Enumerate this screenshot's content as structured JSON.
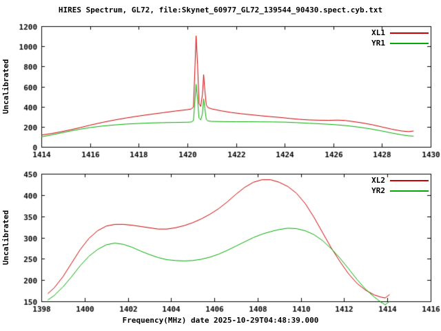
{
  "title": "HIRES Spectrum, GL72, file:Skynet_60977_GL72_139544_90430.spect.cyb.txt",
  "xlabel": "Frequency(MHz) date 2025-10-29T04:48:39.000",
  "colors": {
    "axis": "#000000",
    "background": "#ffffff",
    "text": "#000000"
  },
  "chart_data": [
    {
      "type": "line",
      "ylabel": "Uncalibrated",
      "xlim": [
        1414,
        1430
      ],
      "ylim": [
        0,
        1200
      ],
      "xticks": [
        1414,
        1416,
        1418,
        1420,
        1422,
        1424,
        1426,
        1428,
        1430
      ],
      "yticks": [
        0,
        200,
        400,
        600,
        800,
        1000,
        1200
      ],
      "grid": false,
      "legend_position": "top-right",
      "series": [
        {
          "name": "XL1",
          "color": "#cc0000",
          "points": [
            [
              1414,
              118
            ],
            [
              1414.4,
              132
            ],
            [
              1414.8,
              150
            ],
            [
              1415.2,
              170
            ],
            [
              1415.6,
              192
            ],
            [
              1416,
              216
            ],
            [
              1416.5,
              243
            ],
            [
              1417,
              267
            ],
            [
              1417.5,
              288
            ],
            [
              1418,
              307
            ],
            [
              1418.5,
              324
            ],
            [
              1419,
              340
            ],
            [
              1419.5,
              356
            ],
            [
              1420,
              370
            ],
            [
              1420.15,
              376
            ],
            [
              1420.25,
              395
            ],
            [
              1420.3,
              700
            ],
            [
              1420.36,
              1105
            ],
            [
              1420.42,
              820
            ],
            [
              1420.48,
              430
            ],
            [
              1420.55,
              402
            ],
            [
              1420.62,
              520
            ],
            [
              1420.67,
              718
            ],
            [
              1420.72,
              560
            ],
            [
              1420.78,
              415
            ],
            [
              1420.85,
              390
            ],
            [
              1421,
              378
            ],
            [
              1421.4,
              358
            ],
            [
              1421.8,
              342
            ],
            [
              1422.2,
              330
            ],
            [
              1422.6,
              320
            ],
            [
              1423,
              310
            ],
            [
              1423.4,
              301
            ],
            [
              1423.8,
              293
            ],
            [
              1424.2,
              283
            ],
            [
              1424.6,
              274
            ],
            [
              1425,
              268
            ],
            [
              1425.4,
              265
            ],
            [
              1425.8,
              264
            ],
            [
              1426.2,
              266
            ],
            [
              1426.5,
              262
            ],
            [
              1426.8,
              252
            ],
            [
              1427.2,
              238
            ],
            [
              1427.6,
              220
            ],
            [
              1428,
              198
            ],
            [
              1428.4,
              176
            ],
            [
              1428.8,
              158
            ],
            [
              1429.1,
              152
            ],
            [
              1429.3,
              158
            ]
          ]
        },
        {
          "name": "YR1",
          "color": "#00aa00",
          "points": [
            [
              1414,
              100
            ],
            [
              1414.4,
              118
            ],
            [
              1414.8,
              138
            ],
            [
              1415.2,
              158
            ],
            [
              1415.6,
              176
            ],
            [
              1416,
              192
            ],
            [
              1416.5,
              207
            ],
            [
              1417,
              218
            ],
            [
              1417.5,
              227
            ],
            [
              1418,
              233
            ],
            [
              1418.5,
              238
            ],
            [
              1419,
              241
            ],
            [
              1419.5,
              243
            ],
            [
              1420,
              245
            ],
            [
              1420.15,
              247
            ],
            [
              1420.25,
              260
            ],
            [
              1420.3,
              420
            ],
            [
              1420.36,
              622
            ],
            [
              1420.42,
              470
            ],
            [
              1420.48,
              285
            ],
            [
              1420.55,
              268
            ],
            [
              1420.62,
              330
            ],
            [
              1420.67,
              478
            ],
            [
              1420.72,
              380
            ],
            [
              1420.78,
              272
            ],
            [
              1420.85,
              258
            ],
            [
              1421,
              253
            ],
            [
              1421.5,
              251
            ],
            [
              1422,
              250
            ],
            [
              1422.5,
              250
            ],
            [
              1423,
              249
            ],
            [
              1423.5,
              248
            ],
            [
              1424,
              246
            ],
            [
              1424.5,
              241
            ],
            [
              1425,
              235
            ],
            [
              1425.5,
              229
            ],
            [
              1426,
              222
            ],
            [
              1426.5,
              212
            ],
            [
              1427,
              198
            ],
            [
              1427.5,
              180
            ],
            [
              1428,
              158
            ],
            [
              1428.4,
              138
            ],
            [
              1428.8,
              120
            ],
            [
              1429.1,
              110
            ],
            [
              1429.3,
              107
            ]
          ]
        }
      ]
    },
    {
      "type": "line",
      "ylabel": "Uncalibrated",
      "xlim": [
        1398,
        1416
      ],
      "ylim": [
        150,
        450
      ],
      "xticks": [
        1398,
        1400,
        1402,
        1404,
        1406,
        1408,
        1410,
        1412,
        1414,
        1416
      ],
      "yticks": [
        150,
        200,
        250,
        300,
        350,
        400,
        450
      ],
      "grid": false,
      "legend_position": "top-right",
      "series": [
        {
          "name": "XL2",
          "color": "#cc0000",
          "points": [
            [
              1398.3,
              168
            ],
            [
              1398.6,
              182
            ],
            [
              1399,
              208
            ],
            [
              1399.4,
              240
            ],
            [
              1399.8,
              272
            ],
            [
              1400.2,
              298
            ],
            [
              1400.6,
              316
            ],
            [
              1401,
              327
            ],
            [
              1401.4,
              331
            ],
            [
              1401.8,
              331
            ],
            [
              1402.2,
              329
            ],
            [
              1402.6,
              326
            ],
            [
              1403,
              323
            ],
            [
              1403.4,
              320
            ],
            [
              1403.8,
              320
            ],
            [
              1404.2,
              323
            ],
            [
              1404.6,
              328
            ],
            [
              1405,
              335
            ],
            [
              1405.4,
              344
            ],
            [
              1405.8,
              355
            ],
            [
              1406.2,
              368
            ],
            [
              1406.6,
              384
            ],
            [
              1407,
              402
            ],
            [
              1407.4,
              418
            ],
            [
              1407.8,
              430
            ],
            [
              1408.2,
              436
            ],
            [
              1408.6,
              436
            ],
            [
              1409,
              430
            ],
            [
              1409.4,
              420
            ],
            [
              1409.8,
              404
            ],
            [
              1410.2,
              380
            ],
            [
              1410.6,
              348
            ],
            [
              1411,
              312
            ],
            [
              1411.4,
              276
            ],
            [
              1411.8,
              244
            ],
            [
              1412.2,
              215
            ],
            [
              1412.6,
              192
            ],
            [
              1413,
              176
            ],
            [
              1413.4,
              165
            ],
            [
              1413.7,
              160
            ],
            [
              1413.9,
              158
            ],
            [
              1414.1,
              166
            ]
          ]
        },
        {
          "name": "YR2",
          "color": "#00aa00",
          "points": [
            [
              1398.3,
              153
            ],
            [
              1398.6,
              164
            ],
            [
              1399,
              184
            ],
            [
              1399.4,
              208
            ],
            [
              1399.8,
              234
            ],
            [
              1400.2,
              256
            ],
            [
              1400.6,
              272
            ],
            [
              1401,
              283
            ],
            [
              1401.4,
              287
            ],
            [
              1401.8,
              284
            ],
            [
              1402.2,
              277
            ],
            [
              1402.6,
              268
            ],
            [
              1403,
              260
            ],
            [
              1403.4,
              253
            ],
            [
              1403.8,
              248
            ],
            [
              1404.2,
              246
            ],
            [
              1404.6,
              245
            ],
            [
              1405,
              246
            ],
            [
              1405.4,
              249
            ],
            [
              1405.8,
              254
            ],
            [
              1406.2,
              261
            ],
            [
              1406.6,
              270
            ],
            [
              1407,
              280
            ],
            [
              1407.4,
              290
            ],
            [
              1407.8,
              300
            ],
            [
              1408.2,
              308
            ],
            [
              1408.6,
              314
            ],
            [
              1409,
              319
            ],
            [
              1409.4,
              322
            ],
            [
              1409.8,
              321
            ],
            [
              1410.2,
              316
            ],
            [
              1410.6,
              307
            ],
            [
              1411,
              293
            ],
            [
              1411.4,
              274
            ],
            [
              1411.8,
              252
            ],
            [
              1412.2,
              227
            ],
            [
              1412.6,
              201
            ],
            [
              1413,
              178
            ],
            [
              1413.4,
              160
            ],
            [
              1413.7,
              148
            ],
            [
              1413.9,
              142
            ],
            [
              1414.1,
              150
            ]
          ]
        }
      ]
    }
  ]
}
